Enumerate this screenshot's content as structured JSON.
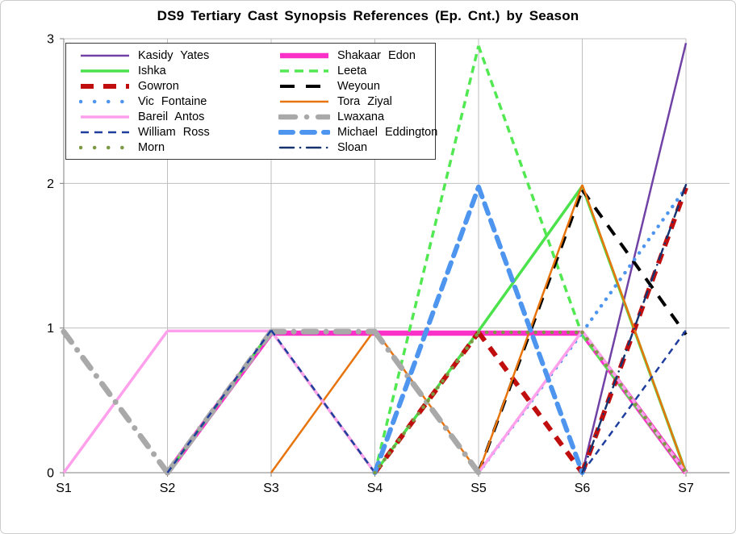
{
  "title": "DS9 Tertiary Cast Synopsis References (Ep. Cnt.) by Season",
  "chart_data": {
    "type": "line",
    "categories": [
      "S1",
      "S2",
      "S3",
      "S4",
      "S5",
      "S6",
      "S7"
    ],
    "xlabel": "",
    "ylabel": "",
    "ylim": [
      0,
      3
    ],
    "y_ticks": [
      "0",
      "1",
      "2",
      "3"
    ],
    "grid": true,
    "legend_position": "top-left",
    "gridline_color": "#BFBFBF",
    "axis_color": "#7F7F7F",
    "series": [
      {
        "name": "Kasidy Yates",
        "color": "#7142A6",
        "line_style": "solid",
        "weight": "thin",
        "values": [
          0,
          0,
          0,
          0,
          0,
          0,
          3
        ]
      },
      {
        "name": "Shakaar Edon",
        "color": "#FA30C8",
        "line_style": "solid",
        "weight": "thick",
        "values": [
          0,
          0,
          1,
          1,
          1,
          1,
          0
        ]
      },
      {
        "name": "Ishka",
        "color": "#4CE24C",
        "line_style": "solid",
        "weight": "medium",
        "values": [
          0,
          0,
          1,
          0,
          1,
          2,
          0
        ]
      },
      {
        "name": "Leeta",
        "color": "#52E852",
        "line_style": "dashed",
        "weight": "medium",
        "values": [
          0,
          0,
          0,
          0,
          3,
          1,
          0
        ]
      },
      {
        "name": "Gowron",
        "color": "#C00E0E",
        "line_style": "dashed",
        "weight": "thick",
        "values": [
          0,
          0,
          0,
          0,
          1,
          0,
          2
        ]
      },
      {
        "name": "Weyoun",
        "color": "#000000",
        "line_style": "dashed",
        "weight": "medium",
        "values": [
          0,
          0,
          0,
          0,
          0,
          2,
          1
        ]
      },
      {
        "name": "Vic Fontaine",
        "color": "#4E95EF",
        "line_style": "dotted",
        "weight": "medium",
        "values": [
          0,
          0,
          0,
          0,
          0,
          1,
          2
        ]
      },
      {
        "name": "Tora Ziyal",
        "color": "#E8740E",
        "line_style": "solid",
        "weight": "thin",
        "values": [
          0,
          0,
          0,
          1,
          0,
          2,
          0
        ]
      },
      {
        "name": "Bareil Antos",
        "color": "#FFA0EC",
        "line_style": "solid",
        "weight": "medium",
        "values": [
          0,
          1,
          1,
          0,
          0,
          1,
          0
        ]
      },
      {
        "name": "Lwaxana",
        "color": "#A9A9A9",
        "line_style": "dash-dot",
        "weight": "thick",
        "values": [
          1,
          0,
          1,
          1,
          0,
          0,
          0
        ]
      },
      {
        "name": "William Ross",
        "color": "#1F3E9E",
        "line_style": "dashed",
        "weight": "thin",
        "values": [
          0,
          0,
          1,
          0,
          0,
          0,
          1
        ]
      },
      {
        "name": "Michael Eddington",
        "color": "#4E95EF",
        "line_style": "dashed",
        "weight": "thick",
        "values": [
          0,
          0,
          0,
          0,
          2,
          0,
          0
        ]
      },
      {
        "name": "Morn",
        "color": "#7D9A43",
        "line_style": "dotted",
        "weight": "medium",
        "values": [
          0,
          0,
          0,
          0,
          1,
          1,
          0
        ]
      },
      {
        "name": "Sloan",
        "color": "#15336F",
        "line_style": "dash-dot",
        "weight": "thin",
        "values": [
          0,
          0,
          0,
          0,
          0,
          0,
          2
        ]
      }
    ]
  }
}
